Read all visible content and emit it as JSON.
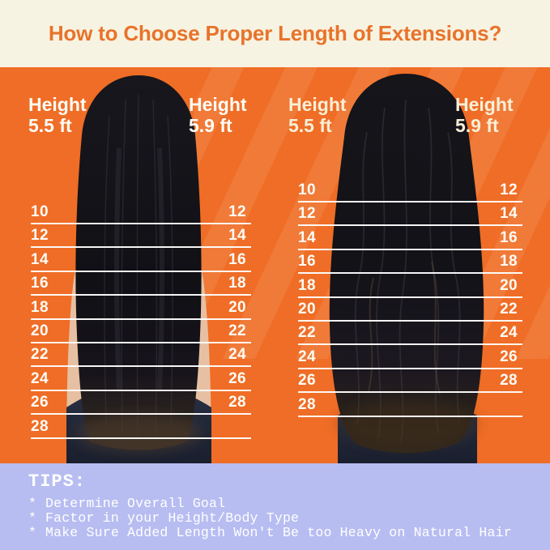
{
  "title": "How to Choose Proper Length of Extensions?",
  "colors": {
    "cream": "#f7f3e2",
    "title-orange": "#e8732a",
    "orange": "#ef6d26",
    "lavender": "#b7bdf1",
    "label-white": "#fdfcf6",
    "label-cream": "#f8efd8"
  },
  "main": {
    "panels": [
      {
        "photo": "straight-hair-back-view",
        "headers": {
          "left": {
            "line1": "Height",
            "line2": "5.5 ft"
          },
          "right": {
            "line1": "Height",
            "line2": "5.9 ft"
          }
        },
        "rows": [
          {
            "left": "10",
            "right": "12"
          },
          {
            "left": "12",
            "right": "14"
          },
          {
            "left": "14",
            "right": "16"
          },
          {
            "left": "16",
            "right": "18"
          },
          {
            "left": "18",
            "right": "20"
          },
          {
            "left": "20",
            "right": "22"
          },
          {
            "left": "22",
            "right": "24"
          },
          {
            "left": "24",
            "right": "26"
          },
          {
            "left": "26",
            "right": "28"
          },
          {
            "left": "28",
            "right": ""
          }
        ]
      },
      {
        "photo": "wavy-hair-back-view",
        "headers": {
          "left": {
            "line1": "Height",
            "line2": "5.5 ft"
          },
          "right": {
            "line1": "Height",
            "line2": "5.9 ft"
          }
        },
        "rows": [
          {
            "left": "10",
            "right": "12"
          },
          {
            "left": "12",
            "right": "14"
          },
          {
            "left": "14",
            "right": "16"
          },
          {
            "left": "16",
            "right": "18"
          },
          {
            "left": "18",
            "right": "20"
          },
          {
            "left": "20",
            "right": "22"
          },
          {
            "left": "22",
            "right": "24"
          },
          {
            "left": "24",
            "right": "26"
          },
          {
            "left": "26",
            "right": "28"
          },
          {
            "left": "28",
            "right": ""
          }
        ]
      }
    ]
  },
  "tips": {
    "heading": "TIPS:",
    "bullet": "*",
    "items": [
      "Determine Overall Goal",
      "Factor in your Height/Body Type",
      "Make Sure Added Length Won't Be too Heavy on Natural Hair"
    ]
  }
}
